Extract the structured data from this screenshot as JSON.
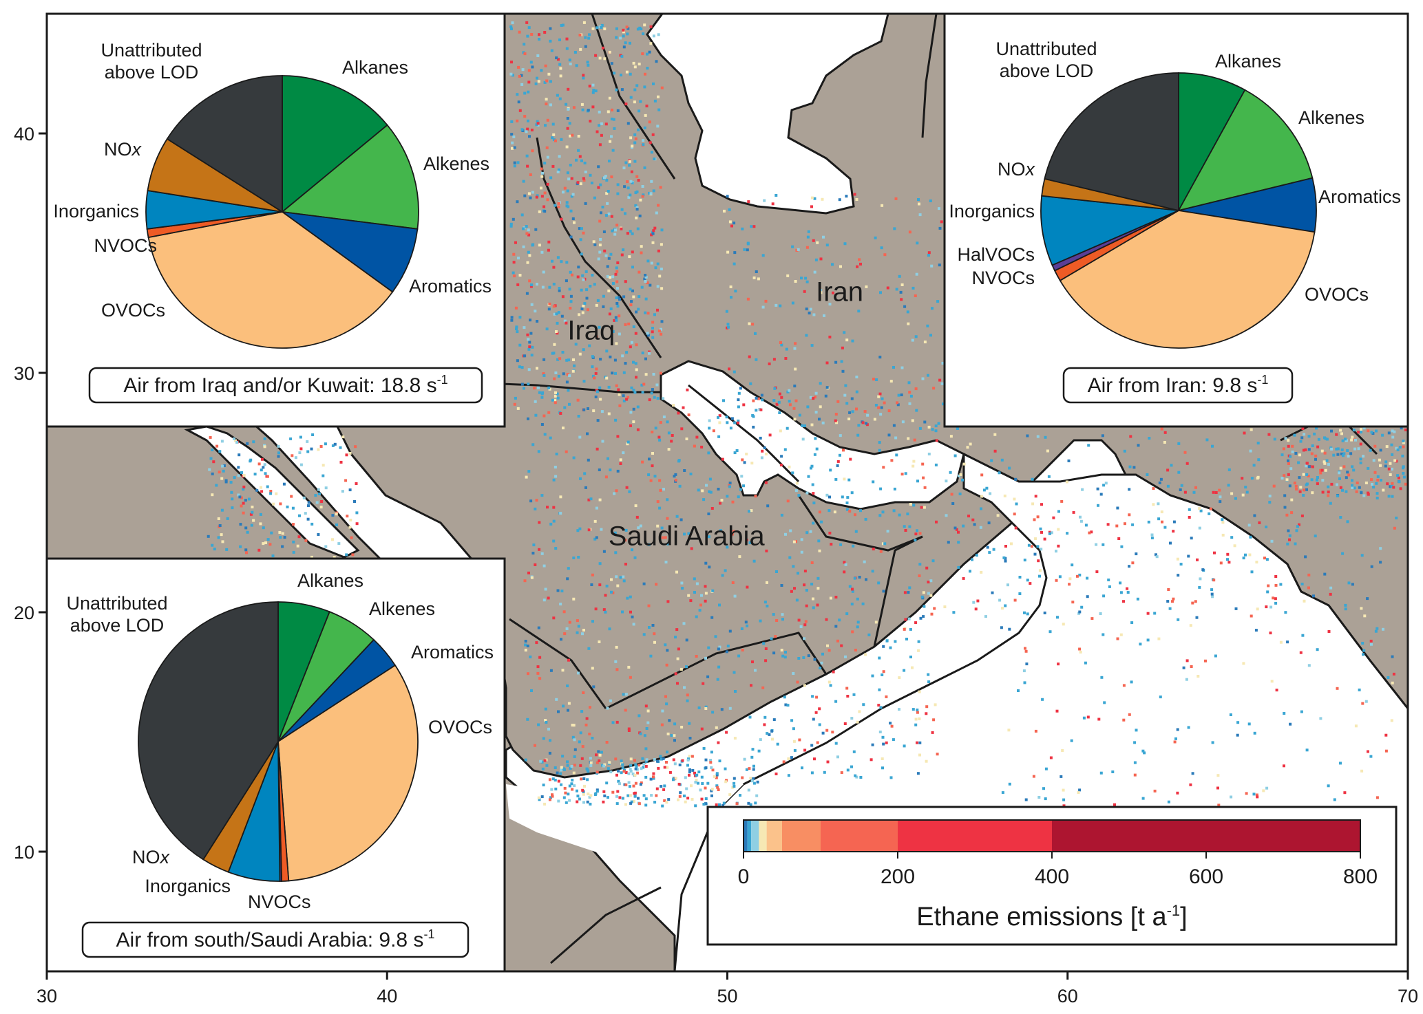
{
  "map": {
    "x_axis": {
      "min": 30,
      "max": 70,
      "ticks": [
        30,
        40,
        50,
        60,
        70
      ]
    },
    "y_axis": {
      "min": 5,
      "max": 45,
      "ticks": [
        10,
        20,
        30,
        40
      ]
    },
    "countries": [
      {
        "name": "Iraq",
        "lon": 46.0,
        "lat": 31.4
      },
      {
        "name": "Iran",
        "lon": 53.3,
        "lat": 33.0
      },
      {
        "name": "Saudi Arabia",
        "lon": 48.8,
        "lat": 22.8
      }
    ],
    "colors": {
      "land": "#aba196",
      "sea": "#ffffff",
      "border": "#1a1a1a"
    }
  },
  "colorbar": {
    "title": "Ethane emissions [t a",
    "title_sup": "-1",
    "title_end": "]",
    "ticks": [
      0,
      200,
      400,
      600,
      800
    ],
    "bins": [
      {
        "from": 0,
        "to": 5,
        "color": "#2b7bba"
      },
      {
        "from": 5,
        "to": 10,
        "color": "#3aa6d3"
      },
      {
        "from": 10,
        "to": 20,
        "color": "#8fcfe3"
      },
      {
        "from": 20,
        "to": 30,
        "color": "#f6e8b4"
      },
      {
        "from": 30,
        "to": 50,
        "color": "#fbc28b"
      },
      {
        "from": 50,
        "to": 100,
        "color": "#f88e63"
      },
      {
        "from": 100,
        "to": 200,
        "color": "#f56552"
      },
      {
        "from": 200,
        "to": 400,
        "color": "#ee3343"
      },
      {
        "from": 400,
        "to": 800,
        "color": "#ad1530"
      }
    ]
  },
  "insets": [
    {
      "id": "iraq",
      "caption": "Air from Iraq and/or Kuwait: 18.8 s",
      "caption_sup": "-1",
      "slices": [
        {
          "label": "Alkanes",
          "value": 14,
          "color": "#008a44"
        },
        {
          "label": "Alkenes",
          "value": 13,
          "color": "#44b64c"
        },
        {
          "label": "Aromatics",
          "value": 8,
          "color": "#0054a4"
        },
        {
          "label": "OVOCs",
          "value": 37,
          "color": "#fbbf7c"
        },
        {
          "label": "NVOCs",
          "value": 1,
          "color": "#ee5b25"
        },
        {
          "label": "Inorganics",
          "value": 4.5,
          "color": "#0085bf"
        },
        {
          "label": "NO",
          "label_sub": "x",
          "value": 6.5,
          "color": "#c57417"
        },
        {
          "label": "Unattributed",
          "label_line2": "above LOD",
          "value": 16,
          "color": "#363a3d"
        }
      ]
    },
    {
      "id": "iran",
      "caption": "Air from Iran: 9.8 s",
      "caption_sup": "-1",
      "slices": [
        {
          "label": "Alkanes",
          "value": 8,
          "color": "#008a44"
        },
        {
          "label": "Alkenes",
          "value": 13.2,
          "color": "#44b64c"
        },
        {
          "label": "Aromatics",
          "value": 6.3,
          "color": "#0054a4"
        },
        {
          "label": "OVOCs",
          "value": 39,
          "color": "#fbbf7c"
        },
        {
          "label": "NVOCs",
          "value": 1.3,
          "color": "#ee5b25"
        },
        {
          "label": "HalVOCs",
          "value": 0.7,
          "color": "#5a3e96"
        },
        {
          "label": "Inorganics",
          "value": 8.2,
          "color": "#0085bf"
        },
        {
          "label": "NO",
          "label_sub": "x",
          "value": 2,
          "color": "#c57417"
        },
        {
          "label": "Unattributed",
          "label_line2": "above LOD",
          "value": 21.3,
          "color": "#363a3d"
        }
      ]
    },
    {
      "id": "saudi",
      "caption": "Air from south/Saudi Arabia: 9.8 s",
      "caption_sup": "-1",
      "slices": [
        {
          "label": "Alkanes",
          "value": 6,
          "color": "#008a44"
        },
        {
          "label": "Alkenes",
          "value": 6,
          "color": "#44b64c"
        },
        {
          "label": "Aromatics",
          "value": 3.8,
          "color": "#0054a4"
        },
        {
          "label": "OVOCs",
          "value": 33,
          "color": "#fbbf7c"
        },
        {
          "label": "NVOCs",
          "value": 0.8,
          "color": "#ee5b25"
        },
        {
          "label": "",
          "value": 0.2,
          "color": "#5a3e96"
        },
        {
          "label": "Inorganics",
          "value": 6,
          "color": "#0085bf"
        },
        {
          "label": "NO",
          "label_sub": "x",
          "value": 3.2,
          "color": "#c57417"
        },
        {
          "label": "Unattributed",
          "label_line2": "above LOD",
          "value": 41,
          "color": "#363a3d"
        }
      ]
    }
  ]
}
